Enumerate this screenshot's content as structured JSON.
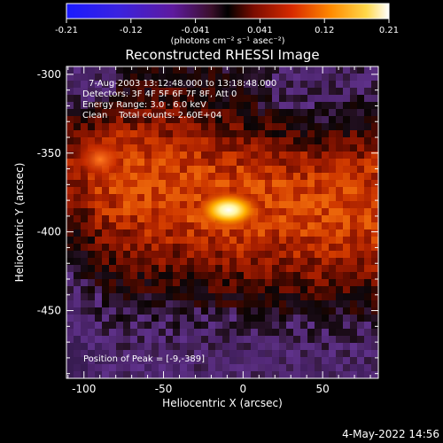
{
  "colorbar": {
    "tick_labels": [
      "-0.21",
      "-0.12",
      "-0.041",
      "0.041",
      "0.12",
      "0.21"
    ],
    "unit_label": "(photons cm⁻² s⁻¹ asec⁻²)"
  },
  "plot": {
    "title": "Reconstructed RHESSI Image",
    "info_lines": [
      "7-Aug-2003 13:12:48.000 to 13:18:48.000",
      "Detectors: 3F 4F 5F 6F 7F 8F, Att 0",
      "Energy Range: 3.0 - 6.0 keV",
      "Clean    Total counts: 2.60E+04"
    ],
    "peak_label": "Position of Peak = [-9,-389]",
    "x_axis": {
      "label": "Heliocentric X (arcsec)",
      "ticks": [
        "-100",
        "-50",
        "0",
        "50"
      ],
      "tick_values": [
        -100,
        -50,
        0,
        50
      ],
      "range": [
        -111,
        85
      ]
    },
    "y_axis": {
      "label": "Heliocentric Y (arcsec)",
      "ticks": [
        "-300",
        "-350",
        "-400",
        "-450"
      ],
      "tick_values": [
        -300,
        -350,
        -400,
        -450
      ],
      "range": [
        -493,
        -295
      ]
    }
  },
  "timestamp": "4-May-2022 14:56",
  "colors": {
    "background": "#000000",
    "foreground": "#ffffff"
  }
}
